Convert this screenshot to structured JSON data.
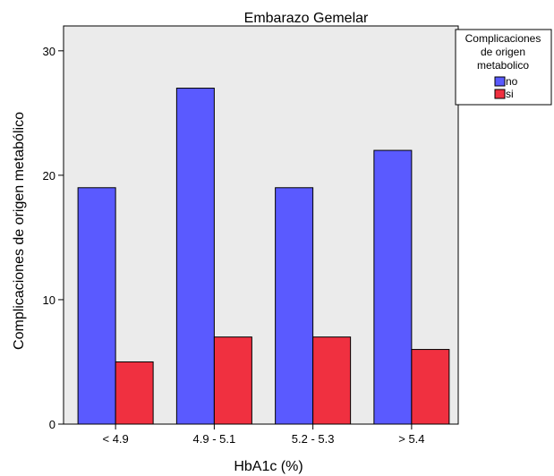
{
  "chart_data": {
    "type": "bar",
    "title": "Embarazo Gemelar",
    "xlabel": "HbA1c (%)",
    "ylabel": "Complicaciones de origen metabólico",
    "categories": [
      "< 4.9",
      "4.9 - 5.1",
      "5.2 - 5.3",
      "> 5.4"
    ],
    "series": [
      {
        "name": "no",
        "values": [
          19,
          27,
          19,
          22
        ],
        "color": "#5a5aff"
      },
      {
        "name": "si",
        "values": [
          5,
          7,
          7,
          6
        ],
        "color": "#f03040"
      }
    ],
    "ylim": [
      0,
      32
    ],
    "yticks": [
      0,
      10,
      20,
      30
    ],
    "grid": false,
    "plot_background": "#ebebeb",
    "legend": {
      "title_lines": [
        "Complicaciones",
        "de origen",
        "metabolico"
      ],
      "placement": "top-right, outside plot"
    }
  }
}
